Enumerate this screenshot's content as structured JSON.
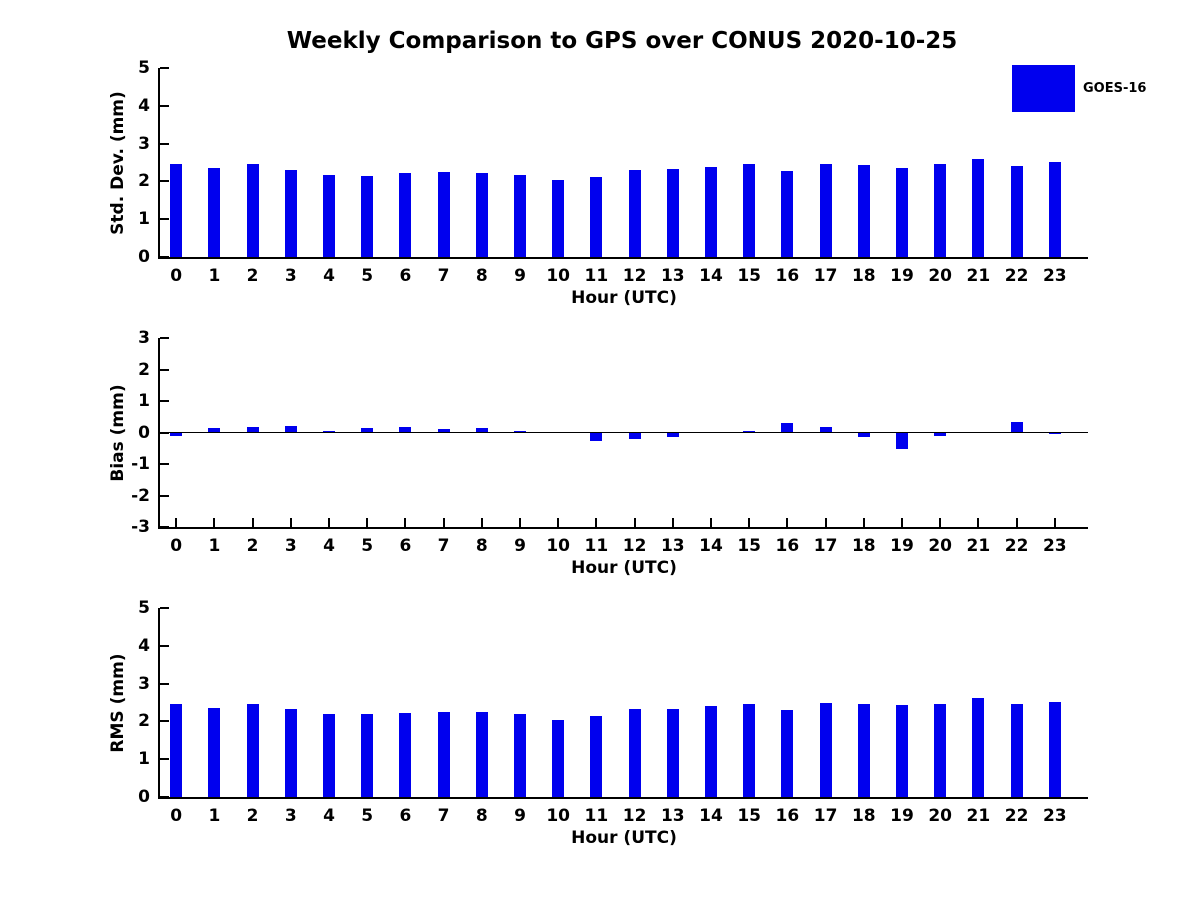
{
  "title": "Weekly Comparison to GPS over CONUS 2020-10-25",
  "legend": {
    "label": "GOES-16",
    "swatch_color": "#0000EE"
  },
  "colors": {
    "bar": "#0000EE",
    "axis": "#000000",
    "background": "#FFFFFF"
  },
  "chart_data": [
    {
      "type": "bar",
      "title": "Weekly Comparison to GPS over CONUS 2020-10-25",
      "series_name": "GOES-16",
      "xlabel": "Hour (UTC)",
      "ylabel": "Std. Dev. (mm)",
      "ylim": [
        0,
        5
      ],
      "yticks": [
        0,
        1,
        2,
        3,
        4,
        5
      ],
      "grid": false,
      "categories": [
        "0",
        "1",
        "2",
        "3",
        "4",
        "5",
        "6",
        "7",
        "8",
        "9",
        "10",
        "11",
        "12",
        "13",
        "14",
        "15",
        "16",
        "17",
        "18",
        "19",
        "20",
        "21",
        "22",
        "23"
      ],
      "values": [
        2.47,
        2.35,
        2.45,
        2.31,
        2.18,
        2.15,
        2.21,
        2.25,
        2.23,
        2.17,
        2.05,
        2.12,
        2.3,
        2.33,
        2.38,
        2.46,
        2.28,
        2.47,
        2.44,
        2.36,
        2.46,
        2.59,
        2.41,
        2.52
      ]
    },
    {
      "type": "bar",
      "title": "",
      "series_name": "GOES-16",
      "xlabel": "Hour (UTC)",
      "ylabel": "Bias (mm)",
      "ylim": [
        -3,
        3
      ],
      "yticks": [
        -3,
        -2,
        -1,
        0,
        1,
        2,
        3
      ],
      "grid": false,
      "zero_line": true,
      "categories": [
        "0",
        "1",
        "2",
        "3",
        "4",
        "5",
        "6",
        "7",
        "8",
        "9",
        "10",
        "11",
        "12",
        "13",
        "14",
        "15",
        "16",
        "17",
        "18",
        "19",
        "20",
        "21",
        "22",
        "23"
      ],
      "values": [
        -0.1,
        0.13,
        0.19,
        0.2,
        0.05,
        0.15,
        0.16,
        0.12,
        0.13,
        0.04,
        0.0,
        -0.26,
        -0.22,
        -0.14,
        0.0,
        0.04,
        0.3,
        0.19,
        -0.13,
        -0.52,
        -0.1,
        0.0,
        0.33,
        -0.05
      ]
    },
    {
      "type": "bar",
      "title": "",
      "series_name": "GOES-16",
      "xlabel": "Hour (UTC)",
      "ylabel": "RMS (mm)",
      "ylim": [
        0,
        5
      ],
      "yticks": [
        0,
        1,
        2,
        3,
        4,
        5
      ],
      "grid": false,
      "categories": [
        "0",
        "1",
        "2",
        "3",
        "4",
        "5",
        "6",
        "7",
        "8",
        "9",
        "10",
        "11",
        "12",
        "13",
        "14",
        "15",
        "16",
        "17",
        "18",
        "19",
        "20",
        "21",
        "22",
        "23"
      ],
      "values": [
        2.47,
        2.35,
        2.46,
        2.33,
        2.2,
        2.19,
        2.23,
        2.26,
        2.25,
        2.19,
        2.05,
        2.15,
        2.33,
        2.34,
        2.4,
        2.45,
        2.29,
        2.5,
        2.46,
        2.43,
        2.46,
        2.61,
        2.45,
        2.52
      ]
    }
  ]
}
